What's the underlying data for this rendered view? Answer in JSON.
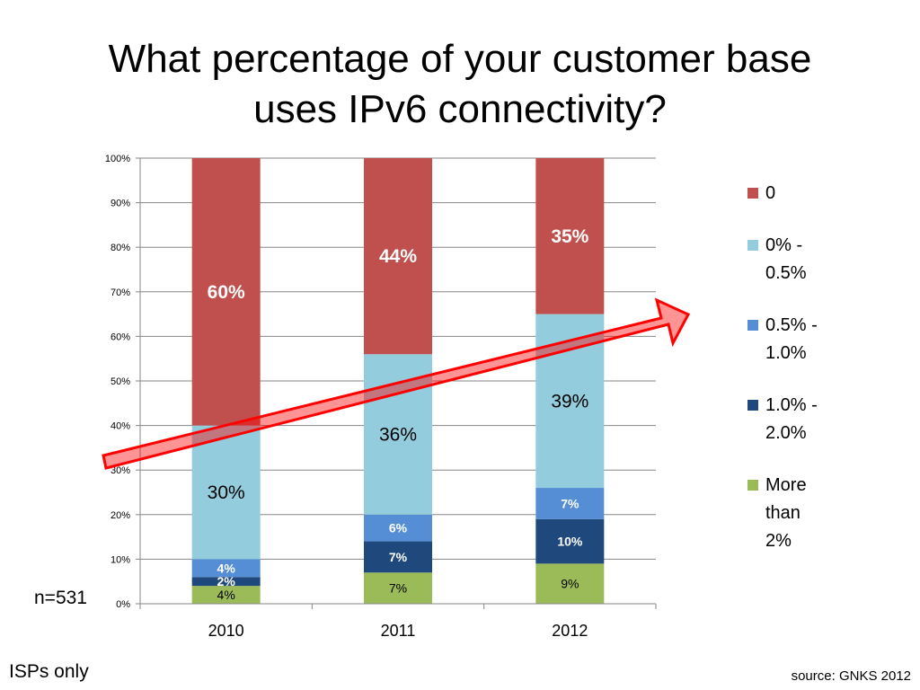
{
  "slide": {
    "title_line1": "What percentage of your customer base",
    "title_line2": "uses IPv6 connectivity?",
    "sample": "n=531",
    "note": "ISPs only",
    "source": "source: GNKS 2012"
  },
  "chart_data": {
    "type": "bar",
    "stacked": true,
    "categories": [
      "2010",
      "2011",
      "2012"
    ],
    "series": [
      {
        "name": "More than 2%",
        "color": "#9BBB59",
        "values": [
          4,
          7,
          9
        ],
        "labels": [
          "4%",
          "7%",
          "9%"
        ]
      },
      {
        "name": "1.0% - 2.0%",
        "color": "#1F497D",
        "values": [
          2,
          7,
          10
        ],
        "labels": [
          "2%",
          "7%",
          "10%"
        ]
      },
      {
        "name": "0.5% - 1.0%",
        "color": "#558ED5",
        "values": [
          4,
          6,
          7
        ],
        "labels": [
          "4%",
          "6%",
          "7%"
        ]
      },
      {
        "name": "0% - 0.5%",
        "color": "#93CDDD",
        "values": [
          30,
          36,
          39
        ],
        "labels": [
          "30%",
          "36%",
          "39%"
        ]
      },
      {
        "name": "0",
        "color": "#C0504D",
        "values": [
          60,
          44,
          35
        ],
        "labels": [
          "60%",
          "44%",
          "35%"
        ]
      }
    ],
    "ylim": [
      0,
      100
    ],
    "yticks": [
      "0%",
      "10%",
      "20%",
      "30%",
      "40%",
      "50%",
      "60%",
      "70%",
      "80%",
      "90%",
      "100%"
    ],
    "grid": true,
    "legend_position": "right",
    "legend_order": [
      "0",
      "0% - 0.5%",
      "0.5% - 1.0%",
      "1.0% - 2.0%",
      "More than 2%"
    ],
    "legend_lines": [
      [
        "0"
      ],
      [
        "0% -",
        "0.5%"
      ],
      [
        "0.5% -",
        "1.0%"
      ],
      [
        "1.0% -",
        "2.0%"
      ],
      [
        "More",
        "than",
        "2%"
      ]
    ],
    "annotation": {
      "type": "arrow",
      "direction": "up-right",
      "color": "#FF0000"
    }
  }
}
